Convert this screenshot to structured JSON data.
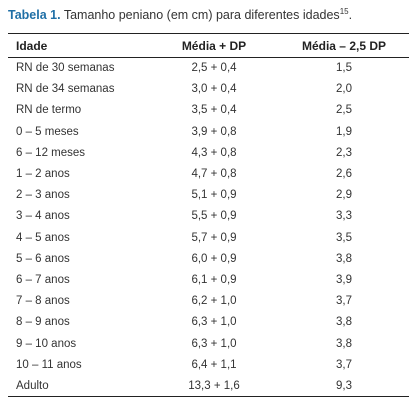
{
  "caption": {
    "label": "Tabela 1.",
    "text": " Tamanho peniano (em cm) para diferentes idades",
    "ref": "15",
    "end": "."
  },
  "table": {
    "headers": [
      "Idade",
      "Média + DP",
      "Média – 2,5 DP"
    ],
    "rows": [
      [
        "RN de 30 semanas",
        "2,5 + 0,4",
        "1,5"
      ],
      [
        "RN de 34 semanas",
        "3,0 + 0,4",
        "2,0"
      ],
      [
        "RN de termo",
        "3,5 + 0,4",
        "2,5"
      ],
      [
        "0 – 5 meses",
        "3,9 + 0,8",
        "1,9"
      ],
      [
        "6 – 12 meses",
        "4,3 + 0,8",
        "2,3"
      ],
      [
        "1 – 2 anos",
        "4,7 + 0,8",
        "2,6"
      ],
      [
        "2 – 3 anos",
        "5,1 + 0,9",
        "2,9"
      ],
      [
        "3 – 4 anos",
        "5,5 + 0,9",
        "3,3"
      ],
      [
        "4 – 5 anos",
        "5,7 + 0,9",
        "3,5"
      ],
      [
        "5 – 6 anos",
        "6,0 + 0,9",
        "3,8"
      ],
      [
        "6 – 7 anos",
        "6,1 + 0,9",
        "3,9"
      ],
      [
        "7 – 8 anos",
        "6,2 + 1,0",
        "3,7"
      ],
      [
        "8 – 9 anos",
        "6,3 + 1,0",
        "3,8"
      ],
      [
        "9 – 10 anos",
        "6,3 + 1,0",
        "3,8"
      ],
      [
        "10 – 11 anos",
        "6,4 + 1,1",
        "3,7"
      ],
      [
        "Adulto",
        "13,3 + 1,6",
        "9,3"
      ]
    ]
  },
  "colors": {
    "caption_label": "#1f6fa6",
    "text": "#333333",
    "rule": "#222222"
  }
}
